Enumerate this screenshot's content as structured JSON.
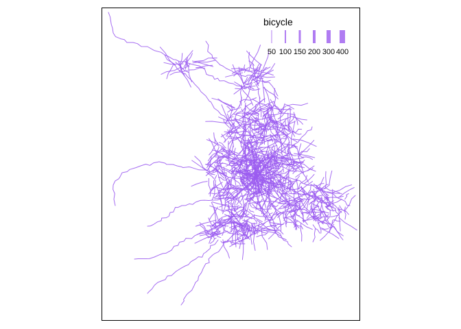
{
  "map": {
    "layer": "bicycle route network",
    "line_color": "#9b5cf0"
  },
  "legend": {
    "title": "bicycle",
    "swatch_color": "#b07cf2",
    "entries": [
      {
        "label": "50",
        "line_width": 1
      },
      {
        "label": "100",
        "line_width": 2
      },
      {
        "label": "150",
        "line_width": 3
      },
      {
        "label": "200",
        "line_width": 4
      },
      {
        "label": "300",
        "line_width": 6
      },
      {
        "label": "400",
        "line_width": 8
      }
    ]
  }
}
